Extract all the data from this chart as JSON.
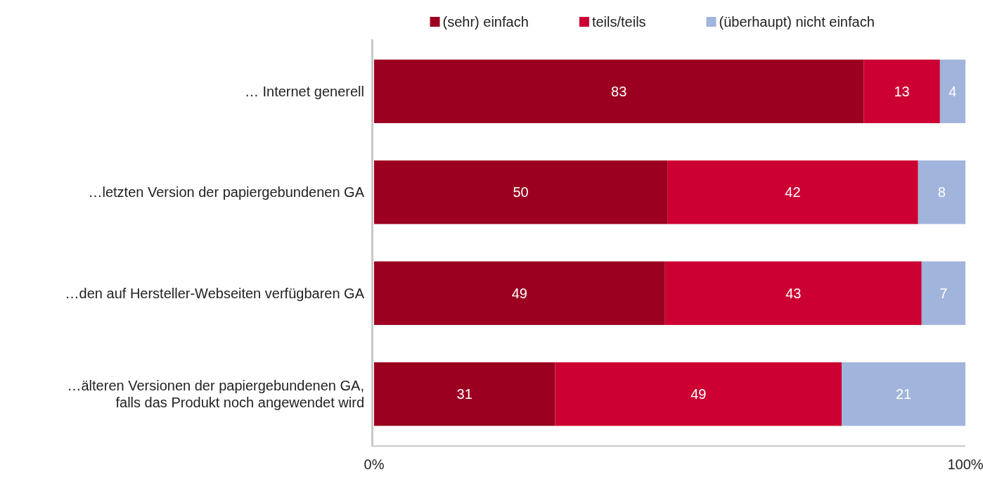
{
  "chart_data": {
    "type": "bar",
    "orientation": "horizontal",
    "stacked": true,
    "categories": [
      "… Internet generell",
      "…letzten Version der papiergebundenen GA",
      "…den auf Hersteller-Webseiten verfügbaren GA",
      "…älteren Versionen der papiergebundenen GA, falls das Produkt noch angewendet wird"
    ],
    "series": [
      {
        "name": "(sehr) einfach",
        "color": "#9b0020",
        "values": [
          82.8,
          49.6,
          49.2,
          30.6
        ],
        "value_labels": [
          "83",
          "50",
          "49",
          "31"
        ]
      },
      {
        "name": "teils/teils",
        "color": "#cc0033",
        "values": [
          12.9,
          42.4,
          43.4,
          48.5
        ],
        "value_labels": [
          "13",
          "42",
          "43",
          "49"
        ]
      },
      {
        "name": "(überhaupt) nicht einfach",
        "color": "#a1b4dc",
        "values": [
          4.3,
          8.0,
          7.4,
          20.9
        ],
        "value_labels": [
          "4",
          "8",
          "7",
          "21"
        ]
      }
    ],
    "xlim": [
      0,
      100
    ],
    "xticks": [
      {
        "value": 0,
        "label": "0%"
      },
      {
        "value": 100,
        "label": "100%"
      }
    ],
    "legend": "top",
    "grid": false
  }
}
